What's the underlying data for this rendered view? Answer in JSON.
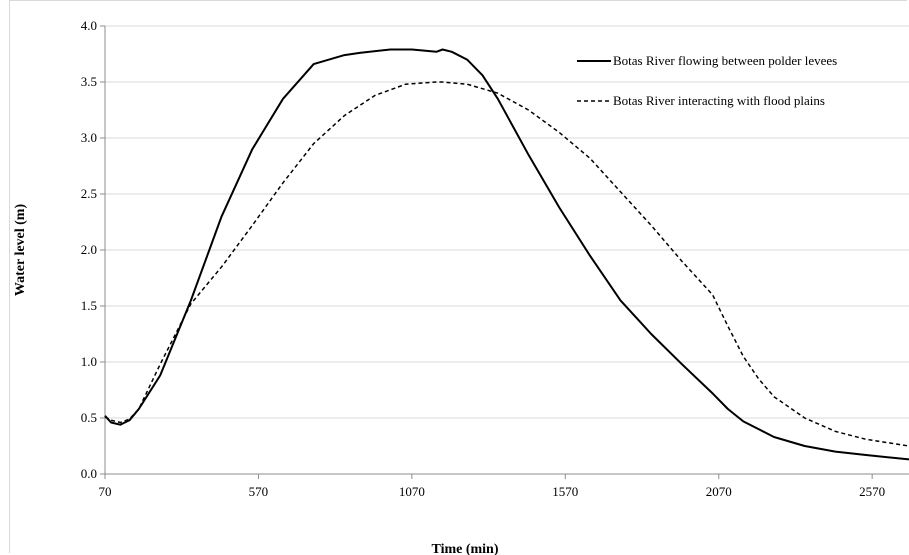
{
  "chart_data": {
    "type": "line",
    "title": "",
    "xlabel": "Time (min)",
    "ylabel": "Water level (m)",
    "xlim": [
      70,
      2690
    ],
    "ylim": [
      0.0,
      4.0
    ],
    "x_ticks": [
      "70",
      "570",
      "1070",
      "1570",
      "2070",
      "2570"
    ],
    "y_ticks": [
      "0.0",
      "0.5",
      "1.0",
      "1.5",
      "2.0",
      "2.5",
      "3.0",
      "3.5",
      "4.0"
    ],
    "grid": "horizontal",
    "legend_position": "top-right",
    "series": [
      {
        "name": "Botas River flowing between polder levees",
        "style": "solid",
        "color": "#000000",
        "x": [
          70,
          90,
          120,
          150,
          180,
          250,
          350,
          450,
          550,
          650,
          750,
          850,
          900,
          1000,
          1070,
          1150,
          1170,
          1200,
          1250,
          1300,
          1350,
          1450,
          1550,
          1650,
          1750,
          1850,
          1950,
          2050,
          2100,
          2150,
          2250,
          2350,
          2450,
          2550,
          2690
        ],
        "values": [
          0.52,
          0.46,
          0.44,
          0.48,
          0.58,
          0.88,
          1.55,
          2.3,
          2.9,
          3.35,
          3.66,
          3.74,
          3.76,
          3.79,
          3.79,
          3.77,
          3.79,
          3.77,
          3.7,
          3.56,
          3.35,
          2.85,
          2.38,
          1.95,
          1.55,
          1.25,
          0.98,
          0.72,
          0.58,
          0.47,
          0.33,
          0.25,
          0.2,
          0.17,
          0.13
        ]
      },
      {
        "name": "Botas River interacting with flood plains",
        "style": "dashed",
        "color": "#000000",
        "x": [
          70,
          90,
          120,
          150,
          180,
          250,
          350,
          450,
          550,
          650,
          750,
          850,
          950,
          1050,
          1150,
          1170,
          1250,
          1350,
          1450,
          1550,
          1650,
          1750,
          1850,
          1950,
          2050,
          2100,
          2150,
          2200,
          2250,
          2350,
          2450,
          2550,
          2690
        ],
        "values": [
          0.51,
          0.48,
          0.46,
          0.49,
          0.58,
          0.98,
          1.52,
          1.85,
          2.22,
          2.6,
          2.95,
          3.2,
          3.38,
          3.48,
          3.5,
          3.5,
          3.48,
          3.4,
          3.25,
          3.05,
          2.82,
          2.52,
          2.22,
          1.9,
          1.6,
          1.32,
          1.05,
          0.85,
          0.69,
          0.5,
          0.38,
          0.31,
          0.25
        ]
      }
    ]
  }
}
